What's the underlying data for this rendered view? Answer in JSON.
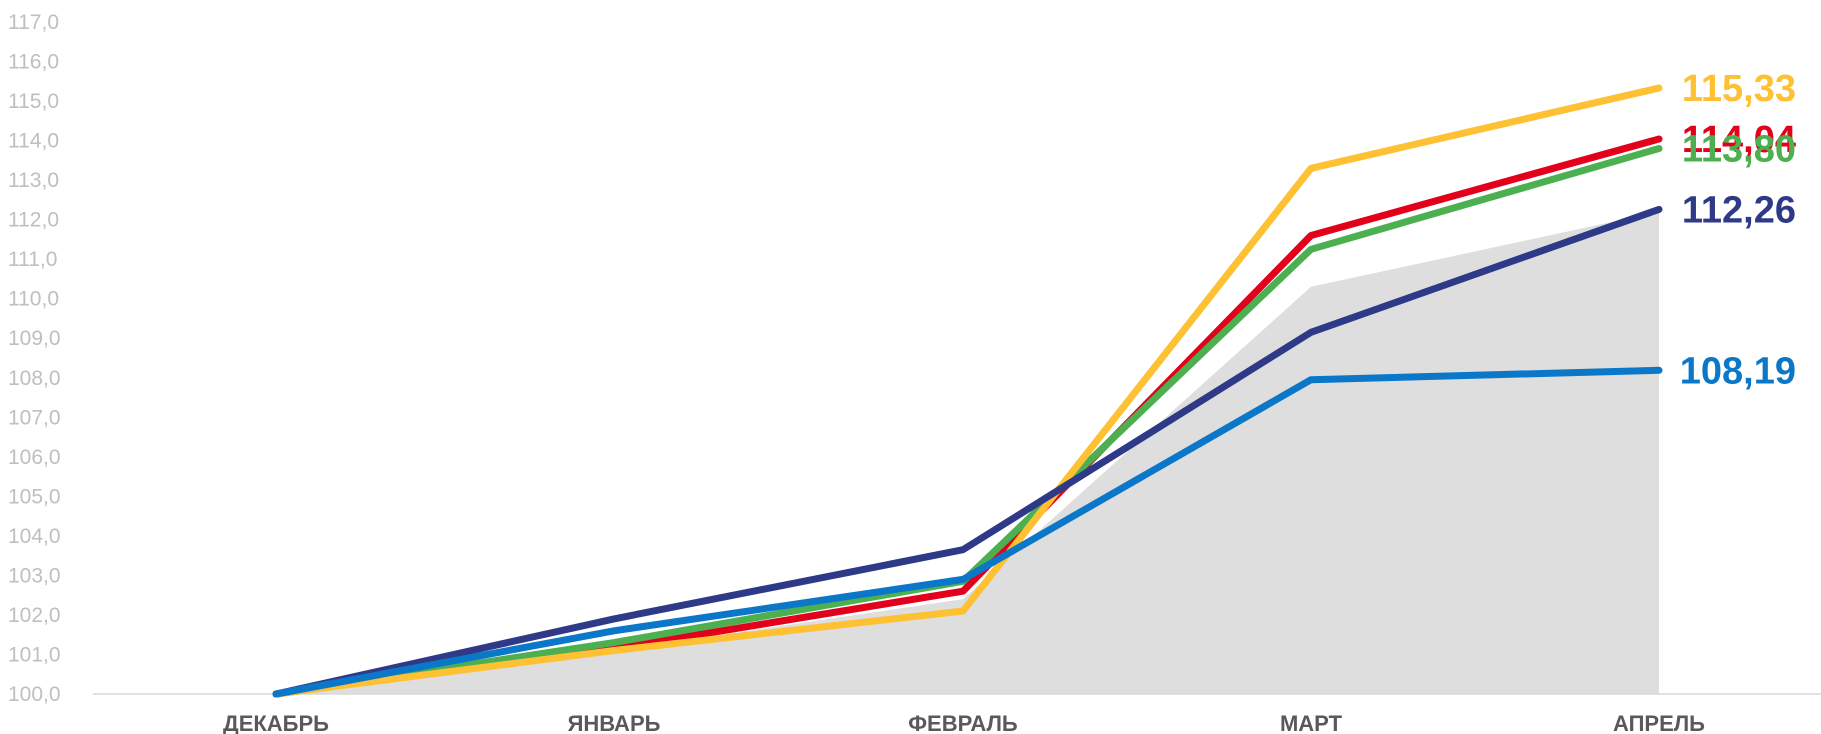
{
  "chart_data": {
    "type": "line",
    "categories": [
      "ДЕКАБРЬ",
      "ЯНВАРЬ",
      "ФЕВРАЛЬ",
      "МАРТ",
      "АПРЕЛЬ"
    ],
    "ylim": [
      100,
      117
    ],
    "yticks": [
      "100,0",
      "101,0",
      "102,0",
      "103,0",
      "104,0",
      "105,0",
      "106,0",
      "107,0",
      "108,0",
      "109,0",
      "110,0",
      "111,0",
      "112,0",
      "113,0",
      "114,0",
      "115,0",
      "116,0",
      "117,0"
    ],
    "grid": false,
    "legend": "none",
    "area": {
      "color": "#dedede",
      "values": [
        100.0,
        101.1,
        102.4,
        110.3,
        112.2
      ]
    },
    "series": [
      {
        "color": "#fdc133",
        "values": [
          100.0,
          101.1,
          102.1,
          113.3,
          115.33
        ],
        "end_label": "115,33"
      },
      {
        "color": "#e2001a",
        "values": [
          100.0,
          101.15,
          102.6,
          111.6,
          114.04
        ],
        "end_label": "114,04"
      },
      {
        "color": "#4caf50",
        "values": [
          100.0,
          101.3,
          102.85,
          111.25,
          113.8
        ],
        "end_label": "113,80"
      },
      {
        "color": "#2e3a87",
        "values": [
          100.0,
          101.9,
          103.65,
          109.15,
          112.26
        ],
        "end_label": "112,26"
      },
      {
        "color": "#0b77c9",
        "values": [
          100.0,
          101.6,
          102.9,
          107.95,
          108.19
        ],
        "end_label": "108,19"
      }
    ]
  }
}
